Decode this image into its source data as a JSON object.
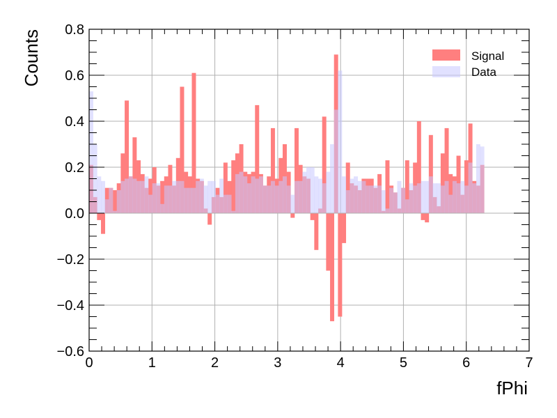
{
  "chart_data": {
    "type": "bar",
    "subtype": "histogram",
    "xlabel": "fPhi",
    "ylabel": "Counts",
    "xlim": [
      0,
      7
    ],
    "ylim": [
      -0.6,
      0.8
    ],
    "x_ticks": [
      "0",
      "1",
      "2",
      "3",
      "4",
      "5",
      "6",
      "7"
    ],
    "y_ticks": [
      "−0.6",
      "−0.4",
      "−0.2",
      "0.0",
      "0.2",
      "0.4",
      "0.6",
      "0.8"
    ],
    "grid": true,
    "legend_position": "top-right",
    "bin_edges": {
      "start": 0,
      "end": 6.2832,
      "bins": 100
    },
    "series": [
      {
        "name": "Signal",
        "color": "#ff7f7f",
        "values": [
          0.21,
          0.07,
          -0.03,
          -0.09,
          0.11,
          0.11,
          0.1,
          0.13,
          0.26,
          0.49,
          0.16,
          0.33,
          0.23,
          0.17,
          0.11,
          0.15,
          0.2,
          0.12,
          0.14,
          0.16,
          0.21,
          0.12,
          0.24,
          0.55,
          0.18,
          0.16,
          0.61,
          0.15,
          0.14,
          0.02,
          -0.05,
          0.07,
          0.11,
          0.07,
          0.22,
          0.14,
          0.23,
          0.26,
          0.3,
          0.18,
          0.17,
          0.18,
          0.47,
          0.17,
          0.12,
          0.16,
          0.37,
          0.15,
          0.24,
          0.3,
          0.18,
          -0.02,
          0.37,
          0.21,
          0.16,
          0.15,
          -0.03,
          -0.16,
          0.02,
          0.42,
          -0.25,
          -0.47,
          0.69,
          -0.45,
          -0.13,
          0.22,
          0.13,
          0.12,
          0.1,
          0.15,
          0.15,
          0.15,
          0.11,
          0.17,
          0.01,
          0.23,
          0.12,
          0.09,
          0.02,
          0.11,
          0.23,
          0.1,
          0.22,
          0.4,
          -0.03,
          -0.04,
          0.34,
          0.07,
          0.03,
          0.26,
          0.37,
          0.17,
          0.16,
          0.25,
          0.08,
          0.23,
          0.39,
          0.14,
          0.12,
          0.21
        ]
      },
      {
        "name": "Data",
        "color": "#c8c8ff",
        "values": [
          0.53,
          0.3,
          0.16,
          0.14,
          0.06,
          0.11,
          0.01,
          0.1,
          0.14,
          0.15,
          0.16,
          0.15,
          0.14,
          0.14,
          0.16,
          0.08,
          0.13,
          0.13,
          0.04,
          0.12,
          0.12,
          0.14,
          0.14,
          0.14,
          0.11,
          0.11,
          0.11,
          0.14,
          0.15,
          0.12,
          0.14,
          0.14,
          0.08,
          0.15,
          0.08,
          0.08,
          0.01,
          0.17,
          0.18,
          0.16,
          0.13,
          0.16,
          0.15,
          0.16,
          0.12,
          0.12,
          0.14,
          0.12,
          0.14,
          0.16,
          0.12,
          0.08,
          0.14,
          0.14,
          0.18,
          0.2,
          0.2,
          0.16,
          0.15,
          0.13,
          0.18,
          0.3,
          0.45,
          0.62,
          0.16,
          0.1,
          0.15,
          0.16,
          0.14,
          0.14,
          0.12,
          0.12,
          0.12,
          0.12,
          0.1,
          0.02,
          0.11,
          0.09,
          0.14,
          0.11,
          0.06,
          0.13,
          0.12,
          0.13,
          0.14,
          0.14,
          0.16,
          0.13,
          0.13,
          0.12,
          0.14,
          0.08,
          0.14,
          0.13,
          0.14,
          0.12,
          0.22,
          0.13,
          0.3,
          0.29
        ]
      }
    ]
  }
}
